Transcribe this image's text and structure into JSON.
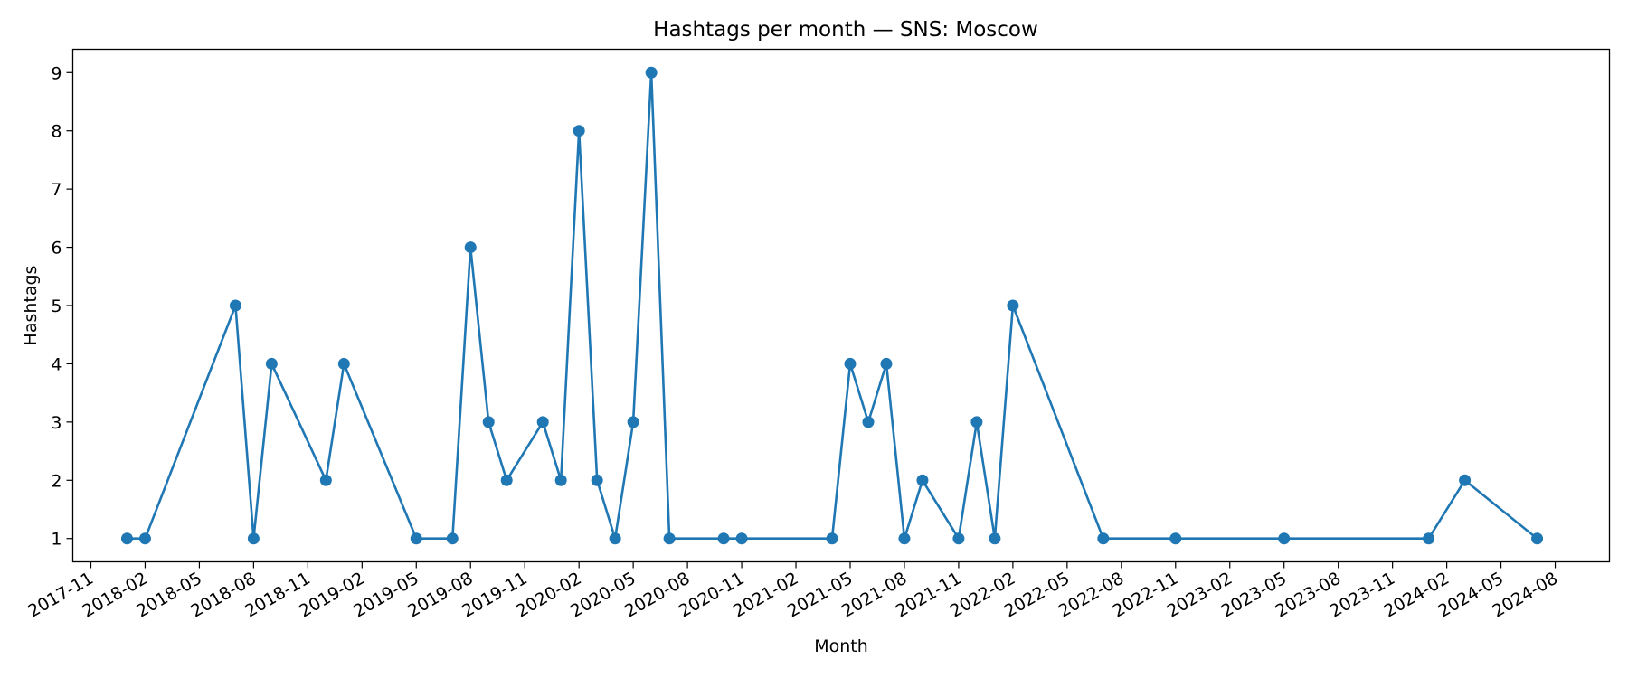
{
  "chart_data": {
    "type": "line",
    "title": "Hashtags per month — SNS: Moscow",
    "xlabel": "Month",
    "ylabel": "Hashtags",
    "xlim": [
      "2017-10-01",
      "2024-11-01"
    ],
    "ylim": [
      0.6,
      9.4
    ],
    "x_ticks": [
      "2017-11",
      "2018-02",
      "2018-05",
      "2018-08",
      "2018-11",
      "2019-02",
      "2019-05",
      "2019-08",
      "2019-11",
      "2020-02",
      "2020-05",
      "2020-08",
      "2020-11",
      "2021-02",
      "2021-05",
      "2021-08",
      "2021-11",
      "2022-02",
      "2022-05",
      "2022-08",
      "2022-11",
      "2023-02",
      "2023-05",
      "2023-08",
      "2023-11",
      "2024-02",
      "2024-05",
      "2024-08"
    ],
    "y_ticks": [
      1,
      2,
      3,
      4,
      5,
      6,
      7,
      8,
      9
    ],
    "grid": false,
    "color": "#1f77b4",
    "series": [
      {
        "x": [
          "2018-01",
          "2018-02",
          "2018-07",
          "2018-08",
          "2018-09",
          "2018-12",
          "2019-01",
          "2019-05",
          "2019-07",
          "2019-08",
          "2019-09",
          "2019-10",
          "2019-12",
          "2020-01",
          "2020-02",
          "2020-03",
          "2020-04",
          "2020-05",
          "2020-06",
          "2020-07",
          "2020-10",
          "2020-11",
          "2021-04",
          "2021-05",
          "2021-06",
          "2021-07",
          "2021-08",
          "2021-09",
          "2021-11",
          "2021-12",
          "2022-01",
          "2022-02",
          "2022-07",
          "2022-11",
          "2023-05",
          "2024-01",
          "2024-03",
          "2024-07"
        ],
        "y": [
          1,
          1,
          5,
          1,
          4,
          2,
          4,
          1,
          1,
          6,
          3,
          2,
          3,
          2,
          8,
          2,
          1,
          3,
          9,
          1,
          1,
          1,
          1,
          4,
          3,
          4,
          1,
          2,
          1,
          3,
          1,
          5,
          1,
          1,
          1,
          1,
          2,
          1
        ]
      }
    ]
  }
}
